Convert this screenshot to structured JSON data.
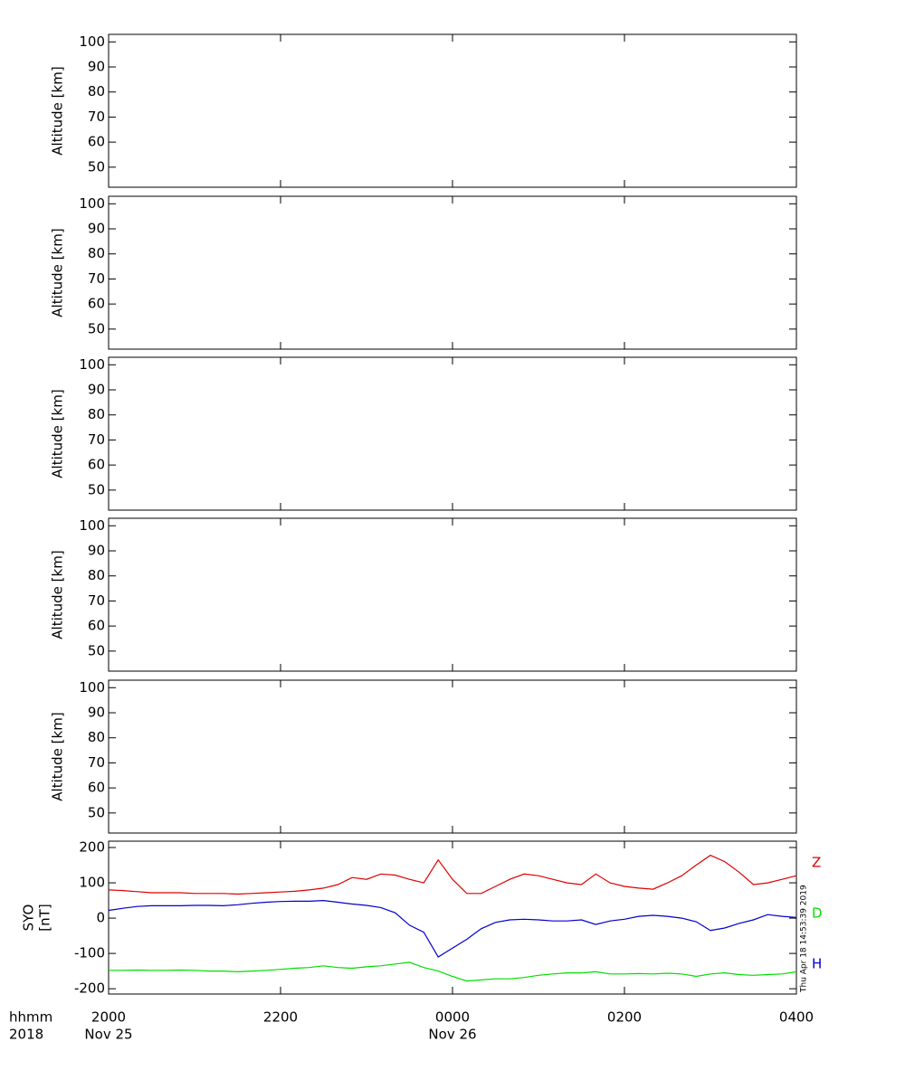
{
  "chart_data": [
    {
      "type": "line",
      "ylabel": "Altitude [km]",
      "ylim": [
        42,
        103
      ],
      "yticks": [
        50,
        60,
        70,
        80,
        90,
        100
      ]
    },
    {
      "type": "line",
      "ylabel": "Altitude [km]",
      "ylim": [
        42,
        103
      ],
      "yticks": [
        50,
        60,
        70,
        80,
        90,
        100
      ]
    },
    {
      "type": "line",
      "ylabel": "Altitude [km]",
      "ylim": [
        42,
        103
      ],
      "yticks": [
        50,
        60,
        70,
        80,
        90,
        100
      ]
    },
    {
      "type": "line",
      "ylabel": "Altitude [km]",
      "ylim": [
        42,
        103
      ],
      "yticks": [
        50,
        60,
        70,
        80,
        90,
        100
      ]
    },
    {
      "type": "line",
      "ylabel": "Altitude [km]",
      "ylim": [
        42,
        103
      ],
      "yticks": [
        50,
        60,
        70,
        80,
        90,
        100
      ]
    },
    {
      "type": "line",
      "ylabel": [
        "SYO",
        "[nT]"
      ],
      "ylim": [
        -215,
        218
      ],
      "yticks": [
        -200,
        -100,
        0,
        100,
        200
      ],
      "x_row_labels": [
        "hhmm",
        "2018"
      ],
      "xlim": [
        "2018-11-25 20:00",
        "2018-11-26 04:00"
      ],
      "xticks": [
        {
          "value": "2018-11-25 20:00",
          "label": "2000"
        },
        {
          "value": "2018-11-25 22:00",
          "label": "2200"
        },
        {
          "value": "2018-11-26 00:00",
          "label": "0000"
        },
        {
          "value": "2018-11-26 02:00",
          "label": "0200"
        },
        {
          "value": "2018-11-26 04:00",
          "label": "0400"
        }
      ],
      "date_labels": [
        {
          "value": "2018-11-25 20:00",
          "label": "Nov 25"
        },
        {
          "value": "2018-11-26 00:00",
          "label": "Nov 26"
        }
      ],
      "x": [
        "2018-11-25 20:00",
        "2018-11-25 20:10",
        "2018-11-25 20:20",
        "2018-11-25 20:30",
        "2018-11-25 20:40",
        "2018-11-25 20:50",
        "2018-11-25 21:00",
        "2018-11-25 21:10",
        "2018-11-25 21:20",
        "2018-11-25 21:30",
        "2018-11-25 21:40",
        "2018-11-25 21:50",
        "2018-11-25 22:00",
        "2018-11-25 22:10",
        "2018-11-25 22:20",
        "2018-11-25 22:30",
        "2018-11-25 22:40",
        "2018-11-25 22:50",
        "2018-11-25 23:00",
        "2018-11-25 23:10",
        "2018-11-25 23:20",
        "2018-11-25 23:30",
        "2018-11-25 23:40",
        "2018-11-25 23:50",
        "2018-11-26 00:00",
        "2018-11-26 00:10",
        "2018-11-26 00:20",
        "2018-11-26 00:30",
        "2018-11-26 00:40",
        "2018-11-26 00:50",
        "2018-11-26 01:00",
        "2018-11-26 01:10",
        "2018-11-26 01:20",
        "2018-11-26 01:30",
        "2018-11-26 01:40",
        "2018-11-26 01:50",
        "2018-11-26 02:00",
        "2018-11-26 02:10",
        "2018-11-26 02:20",
        "2018-11-26 02:30",
        "2018-11-26 02:40",
        "2018-11-26 02:50",
        "2018-11-26 03:00",
        "2018-11-26 03:10",
        "2018-11-26 03:20",
        "2018-11-26 03:30",
        "2018-11-26 03:40",
        "2018-11-26 03:50",
        "2018-11-26 04:00"
      ],
      "series": [
        {
          "name": "Z",
          "color": "#dd0000",
          "values": [
            80,
            78,
            75,
            72,
            72,
            72,
            70,
            70,
            70,
            68,
            70,
            72,
            74,
            76,
            80,
            85,
            95,
            115,
            110,
            125,
            122,
            110,
            100,
            165,
            110,
            70,
            70,
            90,
            110,
            125,
            120,
            110,
            100,
            95,
            125,
            100,
            90,
            85,
            82,
            100,
            120,
            150,
            178,
            160,
            130,
            95,
            100,
            110,
            120
          ]
        },
        {
          "name": "D",
          "color": "#00dd00",
          "values": [
            -148,
            -148,
            -147,
            -148,
            -148,
            -147,
            -148,
            -150,
            -150,
            -152,
            -150,
            -148,
            -145,
            -142,
            -140,
            -135,
            -140,
            -142,
            -138,
            -135,
            -130,
            -125,
            -140,
            -150,
            -165,
            -178,
            -175,
            -172,
            -172,
            -168,
            -162,
            -158,
            -155,
            -155,
            -152,
            -158,
            -158,
            -157,
            -158,
            -156,
            -158,
            -165,
            -158,
            -155,
            -160,
            -162,
            -160,
            -158,
            -152
          ]
        },
        {
          "name": "H",
          "color": "#0000cc",
          "values": [
            22,
            28,
            33,
            35,
            35,
            35,
            36,
            36,
            35,
            38,
            42,
            45,
            47,
            48,
            48,
            50,
            45,
            40,
            36,
            30,
            15,
            -20,
            -40,
            -110,
            -85,
            -60,
            -30,
            -12,
            -5,
            -3,
            -5,
            -8,
            -8,
            -5,
            -18,
            -8,
            -3,
            5,
            8,
            5,
            0,
            -10,
            -35,
            -28,
            -15,
            -5,
            10,
            5,
            2
          ]
        }
      ]
    }
  ],
  "timestamp": "Thu Apr 18 14:53:39 2019"
}
